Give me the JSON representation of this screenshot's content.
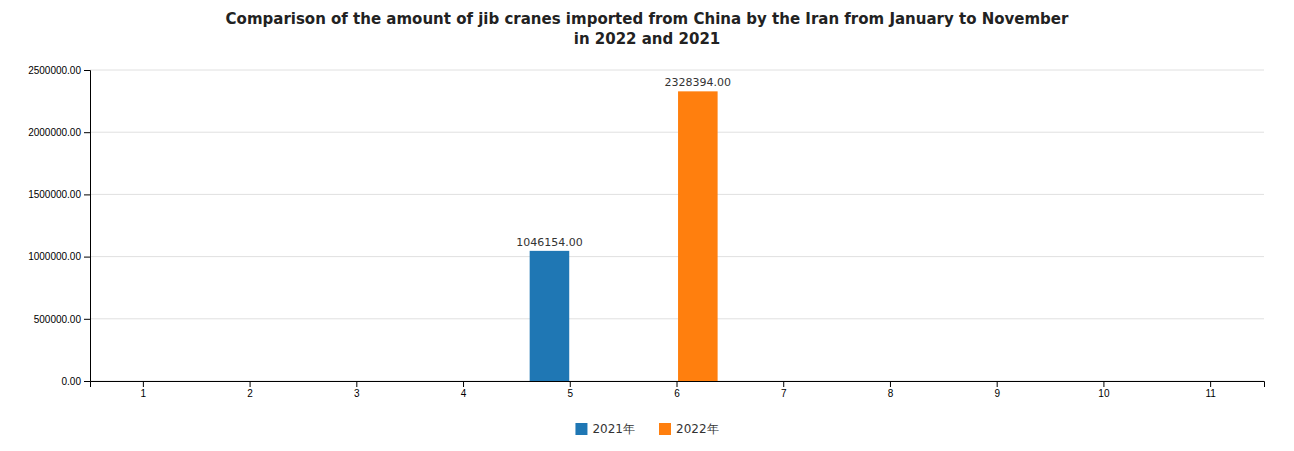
{
  "chart_data": {
    "type": "bar",
    "title": "Comparison of the amount of jib cranes imported from China by the Iran from January to November\nin 2022 and 2021",
    "categories": [
      "1",
      "2",
      "3",
      "4",
      "5",
      "6",
      "7",
      "8",
      "9",
      "10",
      "11"
    ],
    "series": [
      {
        "name": "2021年",
        "values": [
          0,
          0,
          0,
          0,
          1046154,
          0,
          0,
          0,
          0,
          0,
          0
        ],
        "value_labels": [
          null,
          null,
          null,
          null,
          "1046154.00",
          null,
          null,
          null,
          null,
          null,
          null
        ]
      },
      {
        "name": "2022年",
        "values": [
          0,
          0,
          0,
          0,
          0,
          2328394,
          0,
          0,
          0,
          0,
          0
        ],
        "value_labels": [
          null,
          null,
          null,
          null,
          null,
          "2328394.00",
          null,
          null,
          null,
          null,
          null
        ]
      }
    ],
    "ylim": [
      0,
      2500000
    ],
    "yticks": [
      {
        "value": 0,
        "label": "0.00"
      },
      {
        "value": 500000,
        "label": "500000.00"
      },
      {
        "value": 1000000,
        "label": "1000000.00"
      },
      {
        "value": 1500000,
        "label": "1500000.00"
      },
      {
        "value": 2000000,
        "label": "2000000.00"
      },
      {
        "value": 2500000,
        "label": "2500000.00"
      }
    ],
    "grid": true,
    "legend": "bottom",
    "data_labels": true
  }
}
